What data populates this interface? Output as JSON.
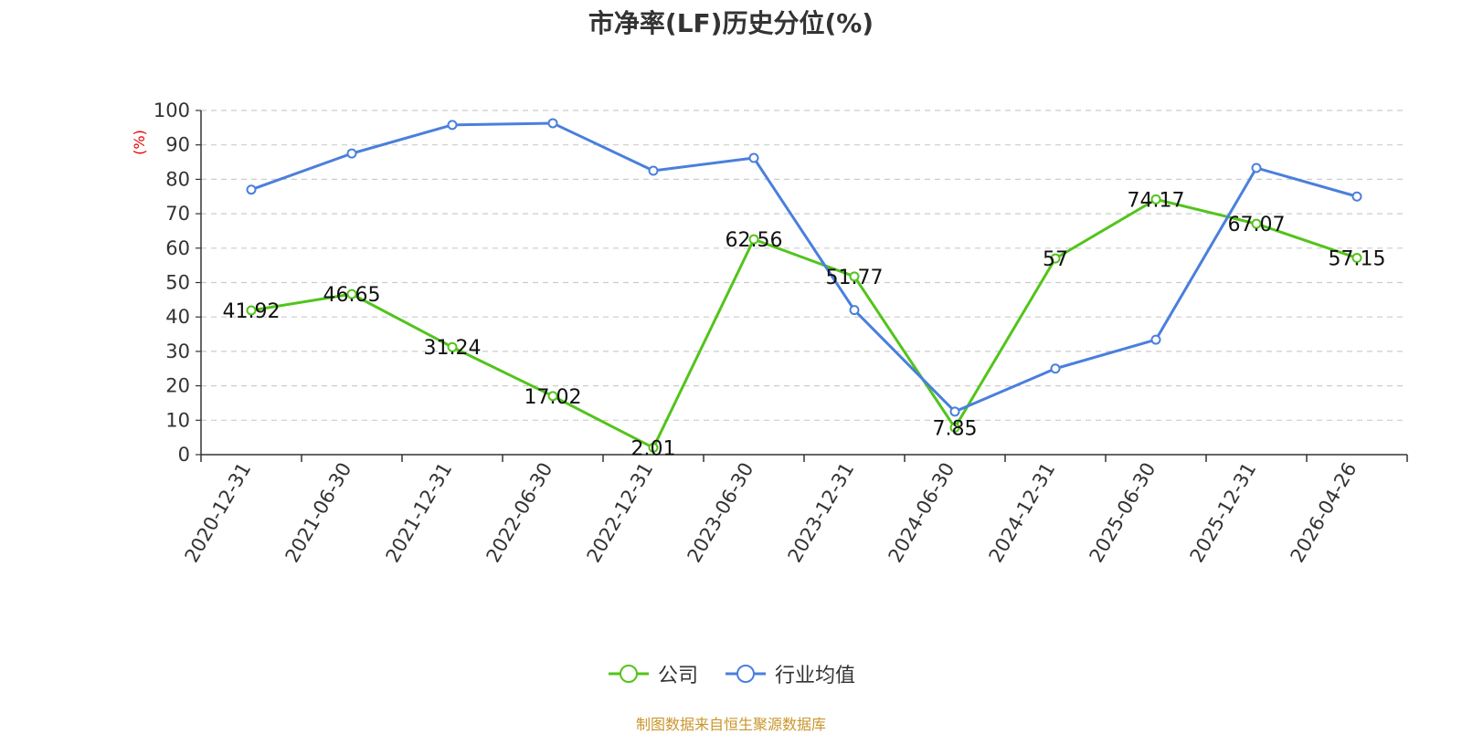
{
  "chart_data": {
    "type": "line",
    "title": "市净率(LF)历史分位(%)",
    "ylabel": "(%)",
    "ylim": [
      0,
      100
    ],
    "yticks": [
      0,
      10,
      20,
      30,
      40,
      50,
      60,
      70,
      80,
      90,
      100
    ],
    "grid": true,
    "legend_position": "bottom-center",
    "categories": [
      "2020-12-31",
      "2021-06-30",
      "2021-12-31",
      "2022-06-30",
      "2022-12-31",
      "2023-06-30",
      "2023-12-31",
      "2024-06-30",
      "2024-12-31",
      "2025-06-30",
      "2025-12-31",
      "2026-04-26"
    ],
    "series": [
      {
        "name": "公司",
        "color": "#52c41a",
        "values": [
          41.92,
          46.65,
          31.24,
          17.02,
          2.01,
          62.56,
          51.77,
          7.85,
          57,
          74.17,
          67.07,
          57.15
        ],
        "show_labels": true
      },
      {
        "name": "行业均值",
        "color": "#4a7fdc",
        "values": [
          77,
          87.5,
          95.8,
          96.3,
          82.5,
          86.2,
          42,
          12.5,
          25,
          33.4,
          83.3,
          75
        ],
        "show_labels": false
      }
    ]
  },
  "source_text": "制图数据来自恒生聚源数据库"
}
